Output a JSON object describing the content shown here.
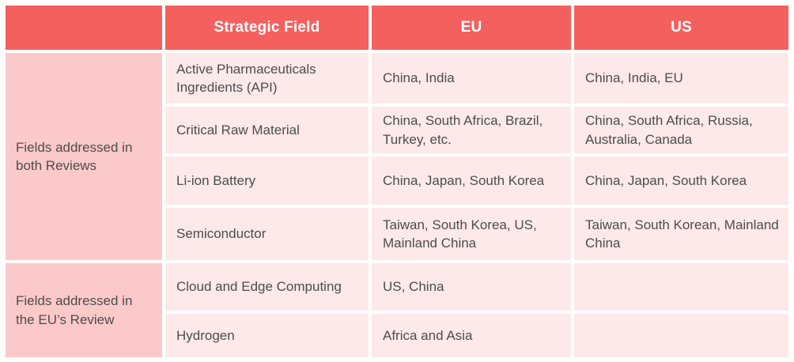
{
  "chart_data": {
    "type": "table",
    "title": "",
    "columns": [
      "",
      "Strategic Field",
      "EU",
      "US"
    ],
    "row_groups": [
      {
        "label": "Fields addressed in both Reviews",
        "rows": [
          {
            "field": "Active Pharmaceuticals Ingredients (API)",
            "eu": "China, India",
            "us": "China, India, EU"
          },
          {
            "field": "Critical Raw Material",
            "eu": "China, South Africa, Brazil, Turkey, etc.",
            "us": "China, South Africa, Russia, Australia, Canada"
          },
          {
            "field": "Li-ion Battery",
            "eu": "China, Japan, South Korea",
            "us": "China, Japan, South Korea"
          },
          {
            "field": "Semiconductor",
            "eu": "Taiwan, South Korea, US, Mainland China",
            "us": "Taiwan, South Korean, Mainland China"
          }
        ]
      },
      {
        "label": "Fields addressed in the EU’s Review",
        "rows": [
          {
            "field": "Cloud and Edge Computing",
            "eu": "US, China",
            "us": ""
          },
          {
            "field": "Hydrogen",
            "eu": "Africa and Asia",
            "us": ""
          }
        ]
      }
    ],
    "layout": {
      "grid_gap_color": "#ffffff",
      "legend": "none",
      "gridlines": "white cell gaps"
    }
  },
  "colors": {
    "header_bg": "#f4605e",
    "header_text": "#ffffff",
    "group_cell_bg": "#fbc9c9",
    "data_cell_bg": "#fde9e9",
    "body_text": "#4d4d4d",
    "background": "#ffffff"
  }
}
